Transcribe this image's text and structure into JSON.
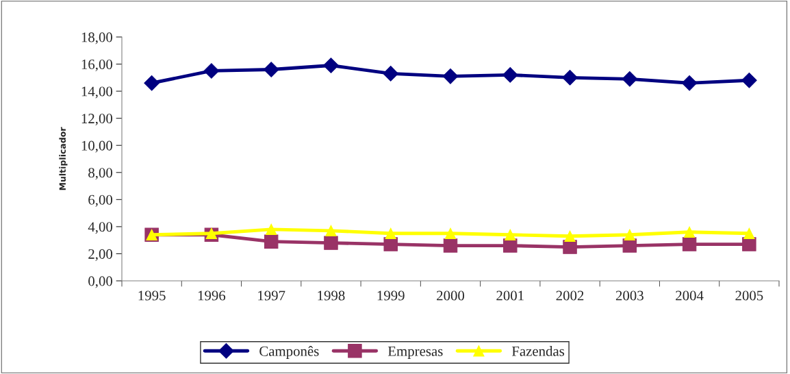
{
  "chart_data": {
    "type": "line",
    "ylabel": "Multiplicador",
    "categories": [
      "1995",
      "1996",
      "1997",
      "1998",
      "1999",
      "2000",
      "2001",
      "2002",
      "2003",
      "2004",
      "2005"
    ],
    "series": [
      {
        "name": "Camponês",
        "color": "#000080",
        "marker": "diamond",
        "values": [
          14.6,
          15.5,
          15.6,
          15.9,
          15.3,
          15.1,
          15.2,
          15.0,
          14.9,
          14.6,
          14.8
        ]
      },
      {
        "name": "Empresas",
        "color": "#993366",
        "marker": "square",
        "values": [
          3.4,
          3.4,
          2.9,
          2.8,
          2.7,
          2.6,
          2.6,
          2.5,
          2.6,
          2.7,
          2.7
        ]
      },
      {
        "name": "Fazendas",
        "color": "#ffff00",
        "marker": "triangle",
        "values": [
          3.4,
          3.5,
          3.8,
          3.7,
          3.5,
          3.5,
          3.4,
          3.3,
          3.4,
          3.6,
          3.5
        ]
      }
    ],
    "ylim": [
      0,
      18
    ],
    "yticks": [
      {
        "value": 0,
        "label": "0,00"
      },
      {
        "value": 2,
        "label": "2,00"
      },
      {
        "value": 4,
        "label": "4,00"
      },
      {
        "value": 6,
        "label": "6,00"
      },
      {
        "value": 8,
        "label": "8,00"
      },
      {
        "value": 10,
        "label": "10,00"
      },
      {
        "value": 12,
        "label": "12,00"
      },
      {
        "value": 14,
        "label": "14,00"
      },
      {
        "value": 16,
        "label": "16,00"
      },
      {
        "value": 18,
        "label": "18,00"
      }
    ],
    "grid": false,
    "legend": "bottom",
    "line_style": "solid"
  }
}
